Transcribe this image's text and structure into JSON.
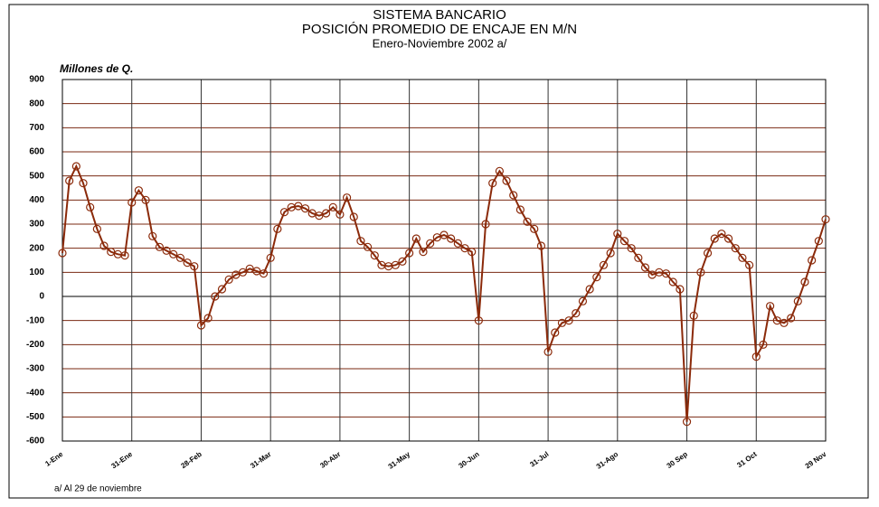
{
  "chart_data": {
    "type": "line",
    "title": "SISTEMA BANCARIO",
    "subtitle": "POSICIÓN PROMEDIO DE ENCAJE EN M/N",
    "period": "Enero-Noviembre 2002 a/",
    "y_label": "Millones de Q.",
    "footnote": "a/ Al 29 de noviembre",
    "x": [
      0,
      3,
      6,
      9,
      12,
      15,
      18,
      21,
      24,
      27,
      30,
      33,
      36,
      39,
      42,
      45,
      48,
      51,
      54,
      57,
      60,
      63,
      66,
      69,
      72,
      75,
      78,
      81,
      84,
      87,
      90,
      93,
      96,
      99,
      102,
      105,
      108,
      111,
      114,
      117,
      120,
      123,
      126,
      129,
      132,
      135,
      138,
      141,
      144,
      147,
      150,
      153,
      156,
      159,
      162,
      165,
      168,
      171,
      174,
      177,
      180,
      183,
      186,
      189,
      192,
      195,
      198,
      201,
      204,
      207,
      210,
      213,
      216,
      219,
      222,
      225,
      228,
      231,
      234,
      237,
      240,
      243,
      246,
      249,
      252,
      255,
      258,
      261,
      264,
      267,
      270,
      273,
      276,
      279,
      282,
      285,
      288,
      291,
      294,
      297,
      300,
      303,
      306,
      309,
      312,
      315,
      318,
      321,
      324,
      327,
      330
    ],
    "series": [
      {
        "name": "Posición promedio",
        "color": "#8b2a0a",
        "values": [
          180,
          480,
          540,
          470,
          370,
          280,
          210,
          185,
          175,
          170,
          390,
          440,
          400,
          250,
          205,
          190,
          175,
          160,
          140,
          125,
          -120,
          -90,
          0,
          30,
          70,
          90,
          100,
          115,
          105,
          95,
          160,
          280,
          350,
          370,
          375,
          365,
          345,
          335,
          345,
          370,
          340,
          410,
          330,
          230,
          205,
          170,
          130,
          125,
          130,
          145,
          180,
          240,
          185,
          220,
          245,
          255,
          240,
          220,
          200,
          185,
          -100,
          300,
          470,
          520,
          480,
          420,
          360,
          310,
          280,
          210,
          -230,
          -150,
          -110,
          -100,
          -70,
          -20,
          30,
          80,
          130,
          180,
          260,
          230,
          200,
          160,
          120,
          90,
          100,
          95,
          60,
          30,
          -520,
          -80,
          100,
          180,
          240,
          260,
          240,
          200,
          160,
          130,
          -250,
          -200,
          -40,
          -100,
          -110,
          -90,
          -20,
          60,
          150,
          230,
          320
        ]
      }
    ],
    "xlim": [
      0,
      330
    ],
    "xticks": [
      {
        "value": 0,
        "label": "1-Ene"
      },
      {
        "value": 30,
        "label": "31-Ene"
      },
      {
        "value": 60,
        "label": "28-Feb"
      },
      {
        "value": 90,
        "label": "31-Mar"
      },
      {
        "value": 120,
        "label": "30-Abr"
      },
      {
        "value": 150,
        "label": "31-May"
      },
      {
        "value": 180,
        "label": "30-Jun"
      },
      {
        "value": 210,
        "label": "31-Jul"
      },
      {
        "value": 240,
        "label": "31-Ago"
      },
      {
        "value": 270,
        "label": "30 Sep"
      },
      {
        "value": 300,
        "label": "31 Oct"
      },
      {
        "value": 330,
        "label": "29 Nov"
      }
    ],
    "ylim": [
      -600,
      900
    ],
    "yticks": [
      -600,
      -500,
      -400,
      -300,
      -200,
      -100,
      0,
      100,
      200,
      300,
      400,
      500,
      600,
      700,
      800,
      900
    ],
    "grid": true
  }
}
